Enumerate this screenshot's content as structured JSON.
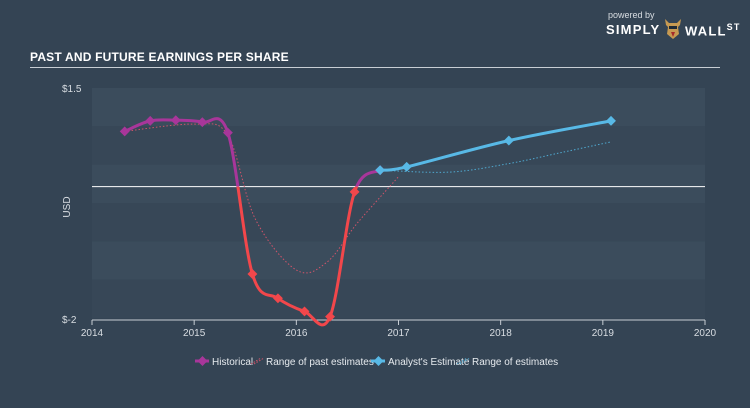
{
  "header": {
    "title": "PAST AND FUTURE EARNINGS PER SHARE",
    "brand_powered": "powered by",
    "brand_simply": "SIMPLY",
    "brand_wall": "WALL",
    "brand_st": "ST"
  },
  "chart_data": {
    "type": "line",
    "title": "PAST AND FUTURE EARNINGS PER SHARE",
    "ylabel": "USD",
    "ylim": [
      -2,
      1.5
    ],
    "xlim": [
      2014,
      2020
    ],
    "y_tick_labels": [
      "$1.5",
      "$-2"
    ],
    "x_ticks": [
      2014,
      2015,
      2016,
      2017,
      2018,
      2019,
      2020
    ],
    "zero_line": 0,
    "grid": true,
    "legend_position": "bottom",
    "colors": {
      "historical_positive": "#a8369a",
      "historical_negative": "#f2474b",
      "analyst_estimate": "#58b9e6",
      "range_past": "#d0546a",
      "range_future": "#4fa8cf"
    },
    "series": [
      {
        "name": "Historical",
        "x": [
          2014.32,
          2014.57,
          2014.82,
          2015.08,
          2015.33,
          2015.57,
          2015.82,
          2016.08,
          2016.33,
          2016.57,
          2016.82
        ],
        "y": [
          0.84,
          1.0,
          1.01,
          0.98,
          0.82,
          -1.33,
          -1.7,
          -1.9,
          -1.98,
          -0.08,
          0.25
        ]
      },
      {
        "name": "Range of past estimates",
        "x": [
          2014.32,
          2015.0,
          2015.33,
          2015.6,
          2016.0,
          2016.3,
          2016.6,
          2017.0
        ],
        "y": [
          0.84,
          0.95,
          0.78,
          -0.5,
          -1.27,
          -1.15,
          -0.55,
          0.15
        ]
      },
      {
        "name": "Analyst's Estimate",
        "x": [
          2016.82,
          2017.08,
          2018.08,
          2019.08
        ],
        "y": [
          0.25,
          0.3,
          0.7,
          1.0
        ]
      },
      {
        "name": "Range of estimates",
        "x": [
          2016.82,
          2017.5,
          2018.08,
          2018.6,
          2019.08
        ],
        "y": [
          0.25,
          0.22,
          0.35,
          0.52,
          0.68
        ]
      }
    ]
  }
}
